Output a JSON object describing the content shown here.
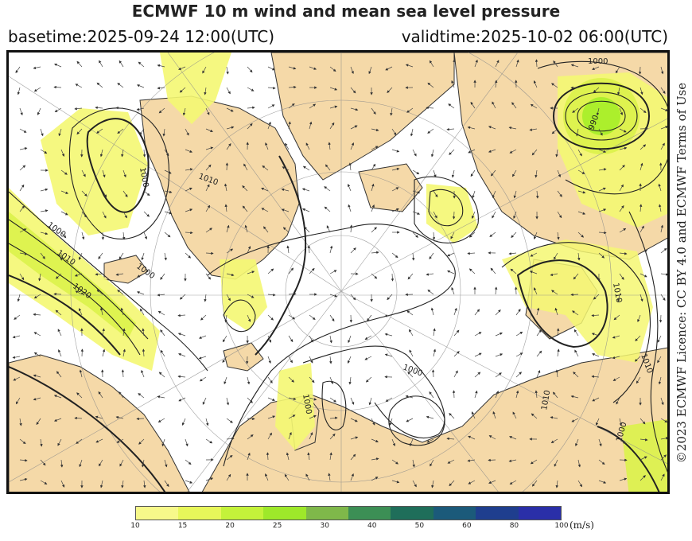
{
  "header": {
    "title": "ECMWF 10 m wind and mean sea level pressure",
    "basetime": "basetime:2025-09-24 12:00(UTC)",
    "validtime": "validtime:2025-10-02 06:00(UTC)"
  },
  "licence": "©2023 ECMWF Licence: CC BY 4.0 and ECMWF Terms of Use",
  "colors": {
    "land": "#f5d9a8",
    "sea": "#ffffff",
    "wind_10_15": "#f4f772",
    "wind_15_20": "#dcf24a",
    "wind_20_25": "#a6ee28",
    "isobar": "#222222"
  },
  "isobar_labels": [
    "1000",
    "1010",
    "1020",
    "990",
    "1000",
    "1010",
    "1000",
    "1000",
    "1010",
    "1000",
    "1010",
    "1000",
    "1000",
    "1010"
  ],
  "colorbar": {
    "unit": "(m/s)",
    "ticks": [
      "10",
      "15",
      "20",
      "25",
      "30",
      "40",
      "50",
      "60",
      "80",
      "100"
    ],
    "colors": [
      "#f7f98a",
      "#e7f75a",
      "#c4f23a",
      "#9ee82a",
      "#7fb84a",
      "#3c8f55",
      "#1f6e5a",
      "#1b5a7a",
      "#1f3e8e",
      "#2a2fa8"
    ]
  }
}
